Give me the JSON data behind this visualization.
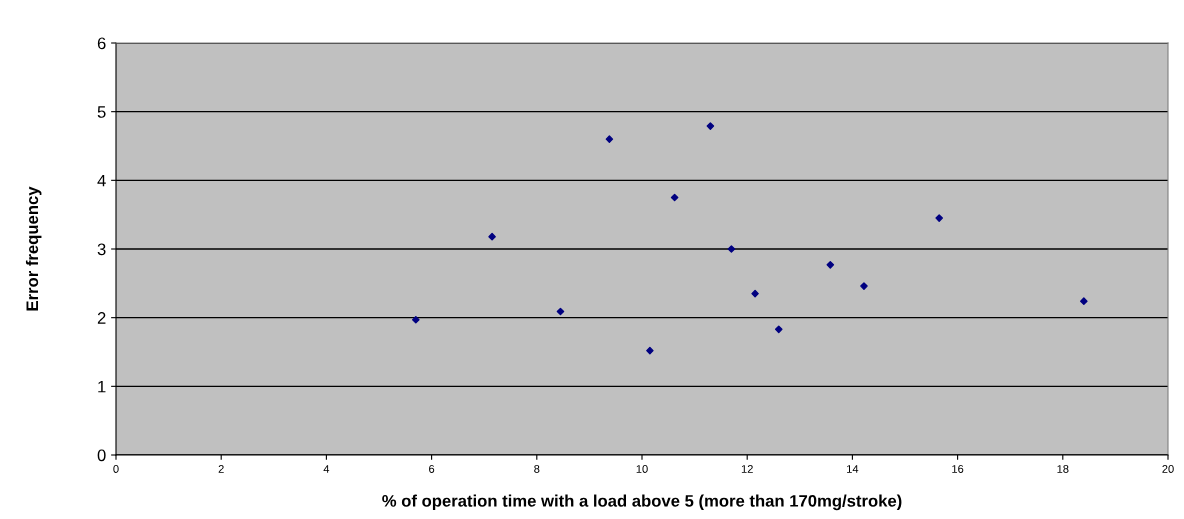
{
  "chart_data": {
    "type": "scatter",
    "xlabel": "% of operation time with a load above 5 (more than 170mg/stroke)",
    "ylabel": "Error frequency",
    "x": [
      5.7,
      7.15,
      8.45,
      9.38,
      10.15,
      10.62,
      11.3,
      11.7,
      12.15,
      12.6,
      13.58,
      14.22,
      15.65,
      18.4
    ],
    "series": [
      {
        "color": "#000080",
        "values": [
          1.97,
          3.18,
          2.09,
          4.6,
          1.52,
          3.75,
          4.79,
          3.0,
          2.35,
          1.83,
          2.77,
          2.46,
          3.45,
          2.24
        ]
      }
    ],
    "xlim": [
      0,
      20
    ],
    "xticks": [
      0,
      2,
      4,
      6,
      8,
      10,
      12,
      14,
      16,
      18,
      20
    ],
    "ylim": [
      0,
      6
    ],
    "yticks": [
      0,
      1,
      2,
      3,
      4,
      5,
      6
    ],
    "grid": "y",
    "marker": "diamond"
  }
}
